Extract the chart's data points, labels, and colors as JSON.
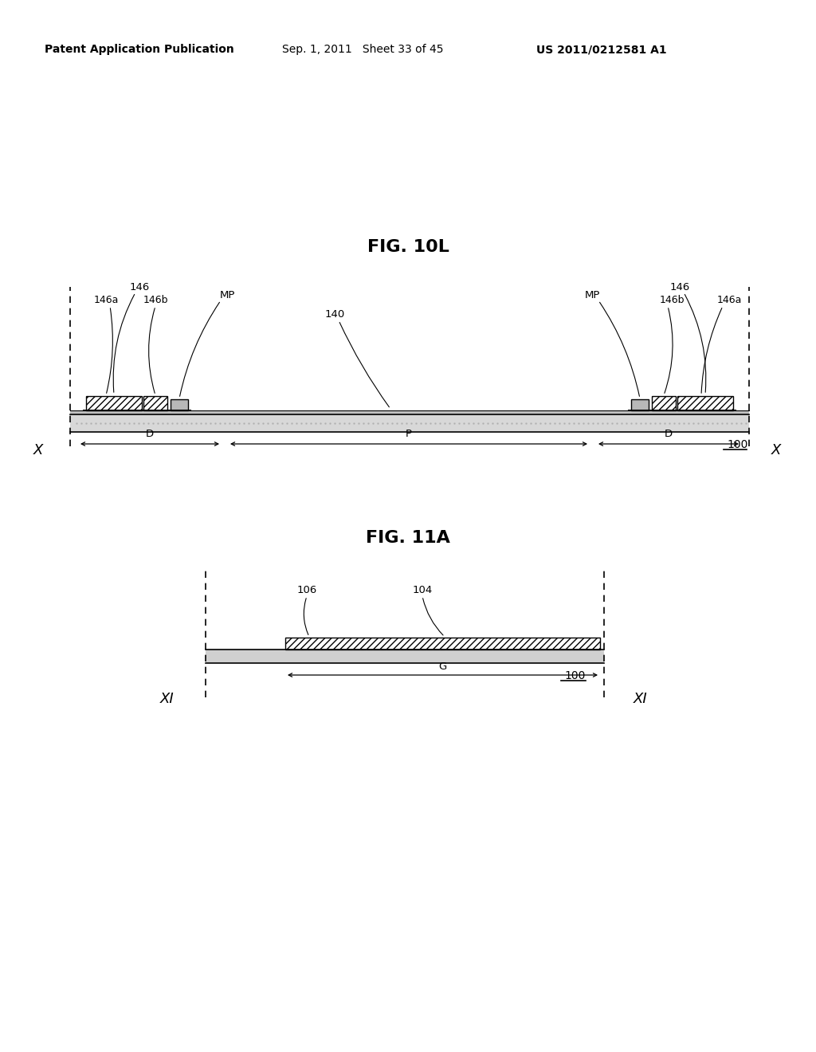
{
  "bg_color": "#ffffff",
  "header_left": "Patent Application Publication",
  "header_mid": "Sep. 1, 2011   Sheet 33 of 45",
  "header_right": "US 2011/0212581 A1",
  "fig1_title": "FIG. 10L",
  "fig2_title": "FIG. 11A",
  "label_100_1": "100",
  "label_100_2": "100",
  "label_X_left": "X",
  "label_X_right": "X",
  "label_XI_left": "XI",
  "label_XI_right": "XI",
  "label_140": "140",
  "label_MP_left": "MP",
  "label_MP_right": "MP",
  "label_146_left": "146",
  "label_146_right": "146",
  "label_146a_left": "146a",
  "label_146b_left": "146b",
  "label_146a_right": "146a",
  "label_146b_right": "146b",
  "label_D_left": "D",
  "label_P": "P",
  "label_D_right": "D",
  "label_106": "106",
  "label_104": "104",
  "label_G": "G"
}
